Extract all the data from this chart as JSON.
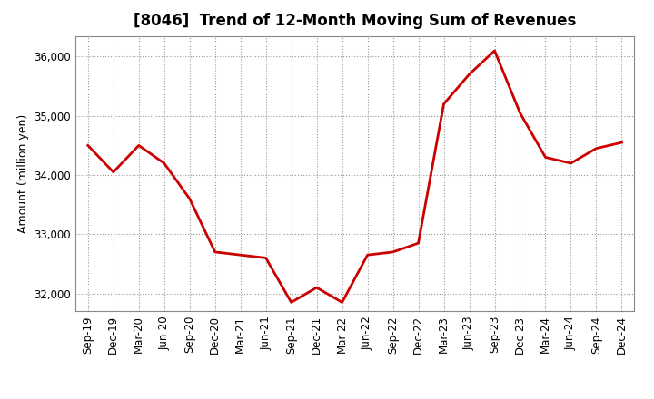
{
  "title": "[8046]  Trend of 12-Month Moving Sum of Revenues",
  "ylabel": "Amount (million yen)",
  "x_labels": [
    "Sep-19",
    "Dec-19",
    "Mar-20",
    "Jun-20",
    "Sep-20",
    "Dec-20",
    "Mar-21",
    "Jun-21",
    "Sep-21",
    "Dec-21",
    "Mar-22",
    "Jun-22",
    "Sep-22",
    "Dec-22",
    "Mar-23",
    "Jun-23",
    "Sep-23",
    "Dec-23",
    "Mar-24",
    "Jun-24",
    "Sep-24",
    "Dec-24"
  ],
  "values": [
    34500,
    34050,
    34500,
    34200,
    33600,
    32700,
    32650,
    32600,
    31850,
    32100,
    31850,
    32650,
    32700,
    32850,
    35200,
    35700,
    36100,
    35050,
    34300,
    34200,
    34450,
    34550
  ],
  "line_color": "#cc0000",
  "line_width": 2.0,
  "ylim_min": 31700,
  "ylim_max": 36350,
  "yticks": [
    32000,
    33000,
    34000,
    35000,
    36000
  ],
  "bg_color": "#ffffff",
  "plot_bg_color": "#ffffff",
  "grid_color": "#999999",
  "title_fontsize": 12,
  "axis_fontsize": 8.5,
  "ylabel_fontsize": 9
}
